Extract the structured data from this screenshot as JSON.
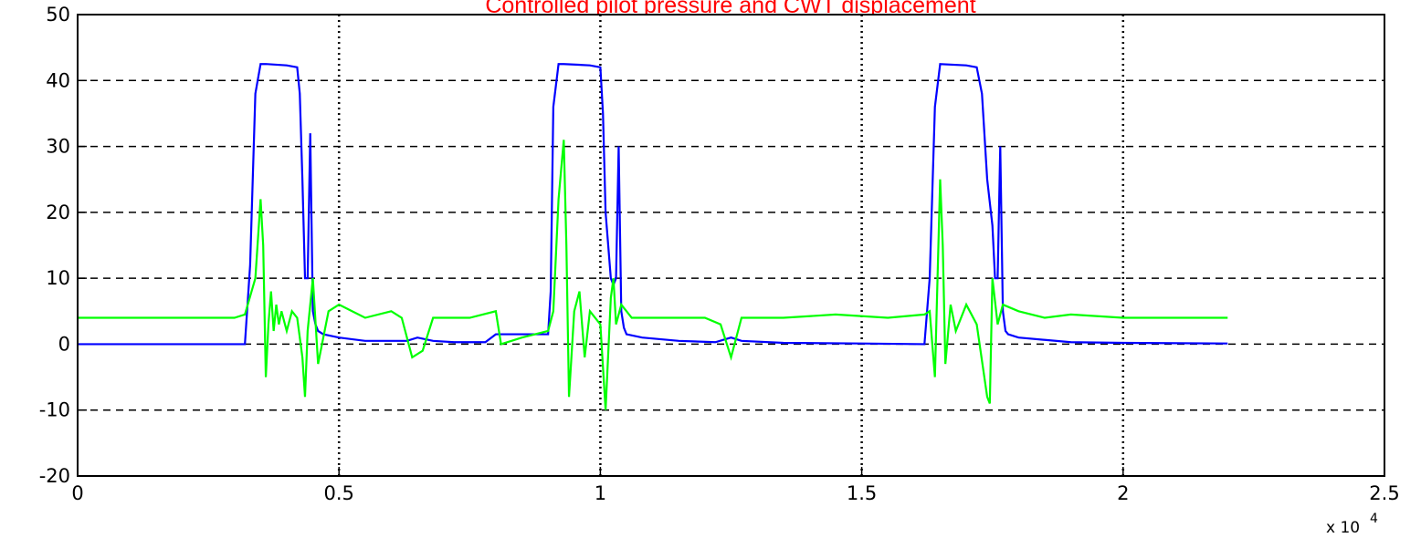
{
  "chart_data": {
    "type": "line",
    "title": "Controlled pilot pressure and CWT displacement",
    "x_multiplier": {
      "base": "x 10",
      "exponent": "4"
    },
    "xlim": [
      0,
      2.5
    ],
    "xticks": [
      0,
      0.5,
      1,
      1.5,
      2,
      2.5
    ],
    "ylim": [
      -20,
      50
    ],
    "yticks": [
      -20,
      -10,
      0,
      10,
      20,
      30,
      40,
      50
    ],
    "grid": true,
    "series": [
      {
        "color": "#0000ff",
        "x": [
          0,
          0.32,
          0.33,
          0.34,
          0.35,
          0.36,
          0.4,
          0.42,
          0.425,
          0.43,
          0.435,
          0.44,
          0.445,
          0.45,
          0.455,
          0.46,
          0.47,
          0.5,
          0.55,
          0.6,
          0.63,
          0.65,
          0.68,
          0.72,
          0.78,
          0.8,
          0.85,
          0.9,
          0.905,
          0.91,
          0.92,
          0.93,
          0.98,
          1.0,
          1.005,
          1.01,
          1.02,
          1.025,
          1.03,
          1.035,
          1.04,
          1.045,
          1.05,
          1.08,
          1.15,
          1.22,
          1.25,
          1.27,
          1.35,
          1.5,
          1.62,
          1.63,
          1.64,
          1.65,
          1.7,
          1.72,
          1.73,
          1.74,
          1.75,
          1.755,
          1.76,
          1.765,
          1.77,
          1.775,
          1.78,
          1.8,
          1.9,
          2.0,
          2.2
        ],
        "values": [
          0,
          0,
          12,
          38,
          42.5,
          42.5,
          42.3,
          42,
          38,
          25,
          10,
          10,
          32,
          5,
          3,
          2,
          1.5,
          1,
          0.5,
          0.5,
          0.5,
          1,
          0.5,
          0.3,
          0.3,
          1.5,
          1.5,
          1.5,
          8,
          36,
          42.5,
          42.5,
          42.3,
          42,
          35,
          20,
          10,
          9,
          10,
          30,
          5,
          2.5,
          1.5,
          1,
          0.5,
          0.3,
          1,
          0.5,
          0.2,
          0.1,
          0,
          10,
          36,
          42.5,
          42.3,
          42,
          38,
          25,
          18,
          10,
          10,
          30,
          5,
          2,
          1.5,
          1,
          0.3,
          0.2,
          0.1
        ]
      },
      {
        "color": "#00ff00",
        "x": [
          0,
          0.3,
          0.32,
          0.34,
          0.35,
          0.355,
          0.36,
          0.365,
          0.37,
          0.375,
          0.38,
          0.385,
          0.39,
          0.4,
          0.41,
          0.42,
          0.43,
          0.435,
          0.44,
          0.45,
          0.46,
          0.48,
          0.5,
          0.55,
          0.6,
          0.62,
          0.64,
          0.66,
          0.68,
          0.75,
          0.8,
          0.81,
          0.85,
          0.9,
          0.91,
          0.92,
          0.93,
          0.935,
          0.94,
          0.95,
          0.96,
          0.97,
          0.98,
          1.0,
          1.01,
          1.02,
          1.025,
          1.03,
          1.04,
          1.06,
          1.1,
          1.2,
          1.23,
          1.25,
          1.27,
          1.35,
          1.45,
          1.55,
          1.62,
          1.63,
          1.64,
          1.65,
          1.655,
          1.66,
          1.67,
          1.68,
          1.7,
          1.72,
          1.74,
          1.745,
          1.75,
          1.76,
          1.77,
          1.8,
          1.85,
          1.9,
          2.0,
          2.2
        ],
        "values": [
          4,
          4,
          4.5,
          10,
          22,
          15,
          -5,
          3,
          8,
          2,
          6,
          3,
          5,
          2,
          5,
          4,
          -2,
          -8,
          2,
          10,
          -3,
          5,
          6,
          4,
          5,
          4,
          -2,
          -1,
          4,
          4,
          5,
          0,
          1,
          2,
          5,
          22,
          31,
          15,
          -8,
          5,
          8,
          -2,
          5,
          3,
          -10,
          7,
          10,
          3,
          6,
          4,
          4,
          4,
          3,
          -2,
          4,
          4,
          4.5,
          4,
          4.5,
          5,
          -5,
          25,
          15,
          -3,
          6,
          2,
          6,
          3,
          -8,
          -9,
          10,
          3,
          6,
          5,
          4,
          4.5,
          4,
          4
        ]
      }
    ]
  }
}
